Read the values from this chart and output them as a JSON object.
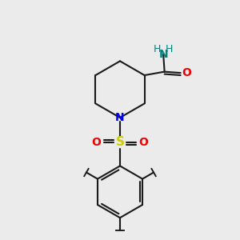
{
  "background_color": "#ebebeb",
  "bond_color": "#1a1a1a",
  "N_color": "#0000ee",
  "O_color": "#ee0000",
  "S_color": "#cccc00",
  "H_color": "#008080",
  "figsize": [
    3.0,
    3.0
  ],
  "dpi": 100,
  "xlim": [
    0,
    10
  ],
  "ylim": [
    0,
    10
  ]
}
